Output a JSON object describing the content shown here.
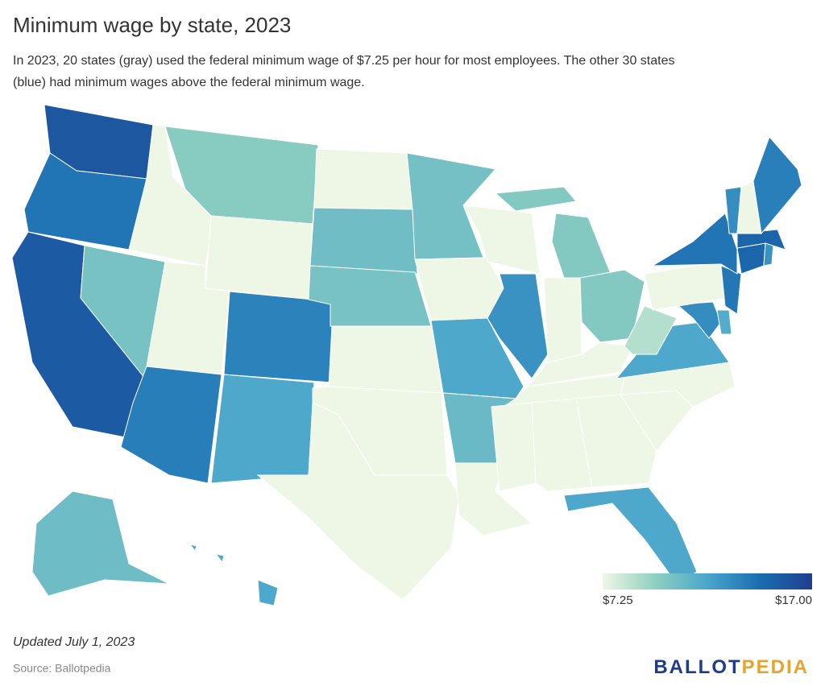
{
  "chart_data": {
    "type": "choropleth",
    "title": "Minimum wage by state, 2023",
    "subtitle_lines": [
      "In 2023, 20 states (gray) used the federal minimum wage of $7.25 per hour for most employees. The other 30 states",
      "(blue) had minimum wages above the federal minimum wage."
    ],
    "values": [
      15.74,
      14.2,
      15.5,
      10.5,
      7.25,
      9.95,
      7.25,
      7.25,
      13.85,
      13.65,
      12,
      7.25,
      10.8,
      10.5,
      7.25,
      7.25,
      7.25,
      10.59,
      7.25,
      12,
      11,
      7.25,
      7.25,
      13,
      10.1,
      7.25,
      10.1,
      7.25,
      7.25,
      7.25,
      7.25,
      7.25,
      12,
      7.25,
      7.25,
      12,
      8.75,
      13.25,
      11.75,
      7.25,
      14.13,
      14.2,
      15,
      13,
      15,
      13.18,
      7.25,
      13.8,
      10.85,
      12
    ],
    "clim": [
      7.25,
      17
    ],
    "colorscale": [
      "#eef7e6",
      "#8fd0c0",
      "#4aa6cc",
      "#1a6db0",
      "#1f3f8f"
    ],
    "legend_ticks": [
      {
        "value": 7.25,
        "label": "$7.25"
      },
      {
        "value": 17,
        "label": "$17.00"
      }
    ],
    "note": "Updated July 1, 2023",
    "source": "Source: Ballotpedia",
    "logo": [
      "BALLOT",
      "PEDIA"
    ]
  }
}
